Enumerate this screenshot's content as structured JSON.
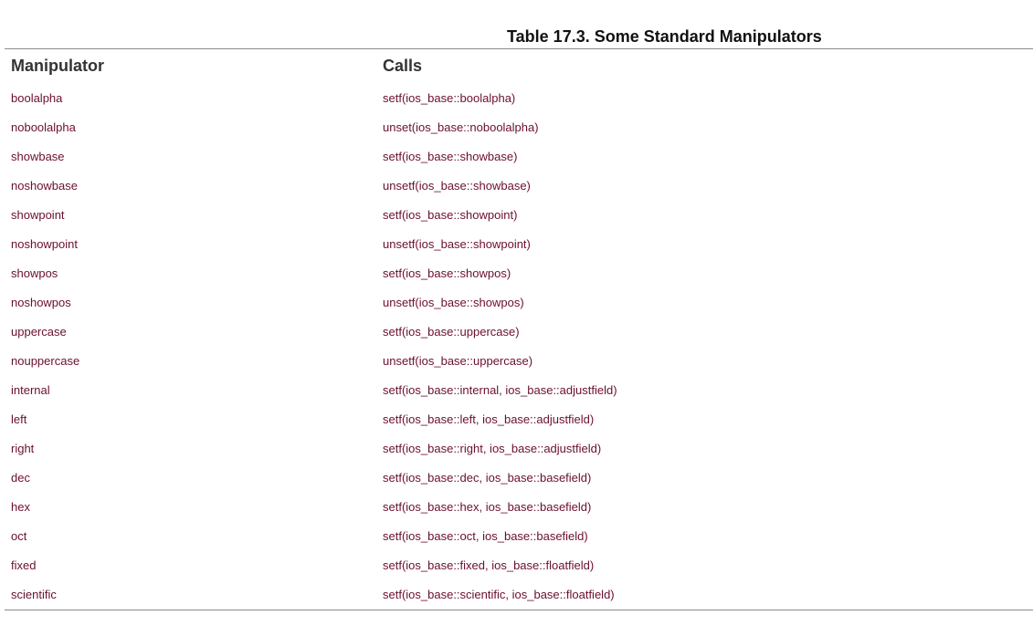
{
  "table": {
    "title": "Table 17.3. Some Standard Manipulators",
    "headers": [
      "Manipulator",
      "Calls"
    ],
    "rows": [
      [
        "boolalpha",
        "setf(ios_base::boolalpha)"
      ],
      [
        "noboolalpha",
        "unset(ios_base::noboolalpha)"
      ],
      [
        "showbase",
        "setf(ios_base::showbase)"
      ],
      [
        "noshowbase",
        "unsetf(ios_base::showbase)"
      ],
      [
        "showpoint",
        "setf(ios_base::showpoint)"
      ],
      [
        "noshowpoint",
        "unsetf(ios_base::showpoint)"
      ],
      [
        "showpos",
        "setf(ios_base::showpos)"
      ],
      [
        "noshowpos",
        "unsetf(ios_base::showpos)"
      ],
      [
        "uppercase",
        "setf(ios_base::uppercase)"
      ],
      [
        "nouppercase",
        "unsetf(ios_base::uppercase)"
      ],
      [
        "internal",
        "setf(ios_base::internal, ios_base::adjustfield)"
      ],
      [
        "left",
        "setf(ios_base::left, ios_base::adjustfield)"
      ],
      [
        "right",
        "setf(ios_base::right, ios_base::adjustfield)"
      ],
      [
        "dec",
        "setf(ios_base::dec, ios_base::basefield)"
      ],
      [
        "hex",
        "setf(ios_base::hex, ios_base::basefield)"
      ],
      [
        "oct",
        "setf(ios_base::oct, ios_base::basefield)"
      ],
      [
        "fixed",
        "setf(ios_base::fixed, ios_base::floatfield)"
      ],
      [
        "scientific",
        "setf(ios_base::scientific, ios_base::floatfield)"
      ]
    ]
  },
  "colors": {
    "cell_text": "#6b0f2e",
    "header_text": "#333333",
    "title_text": "#111111",
    "rule": "#8a8a8a"
  }
}
